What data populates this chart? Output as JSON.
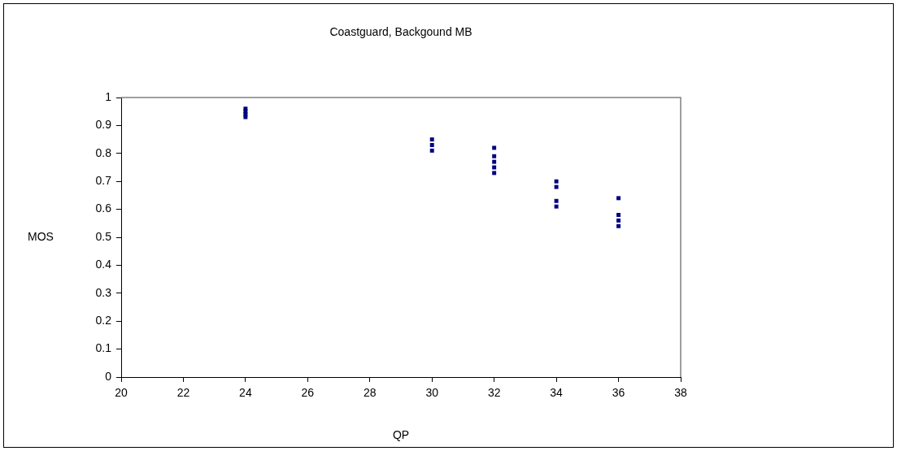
{
  "chart_data": {
    "type": "scatter",
    "title": "Coastguard, Backgound MB",
    "xlabel": "QP",
    "ylabel": "MOS",
    "x": [
      24,
      24,
      24,
      24,
      30,
      30,
      30,
      32,
      32,
      32,
      32,
      32,
      34,
      34,
      34,
      34,
      36,
      36,
      36,
      36
    ],
    "values": [
      0.96,
      0.95,
      0.94,
      0.93,
      0.85,
      0.83,
      0.81,
      0.82,
      0.79,
      0.77,
      0.75,
      0.73,
      0.7,
      0.68,
      0.63,
      0.61,
      0.64,
      0.58,
      0.56,
      0.54
    ],
    "color": "#000080",
    "marker": "square",
    "xlim": [
      20,
      38
    ],
    "xticks": [
      20,
      22,
      24,
      26,
      28,
      30,
      32,
      34,
      36,
      38
    ],
    "ylim": [
      0,
      1
    ],
    "yticks": [
      0,
      0.1,
      0.2,
      0.3,
      0.4,
      0.5,
      0.6,
      0.7,
      0.8,
      0.9,
      1
    ],
    "grid": false,
    "legend": false
  }
}
